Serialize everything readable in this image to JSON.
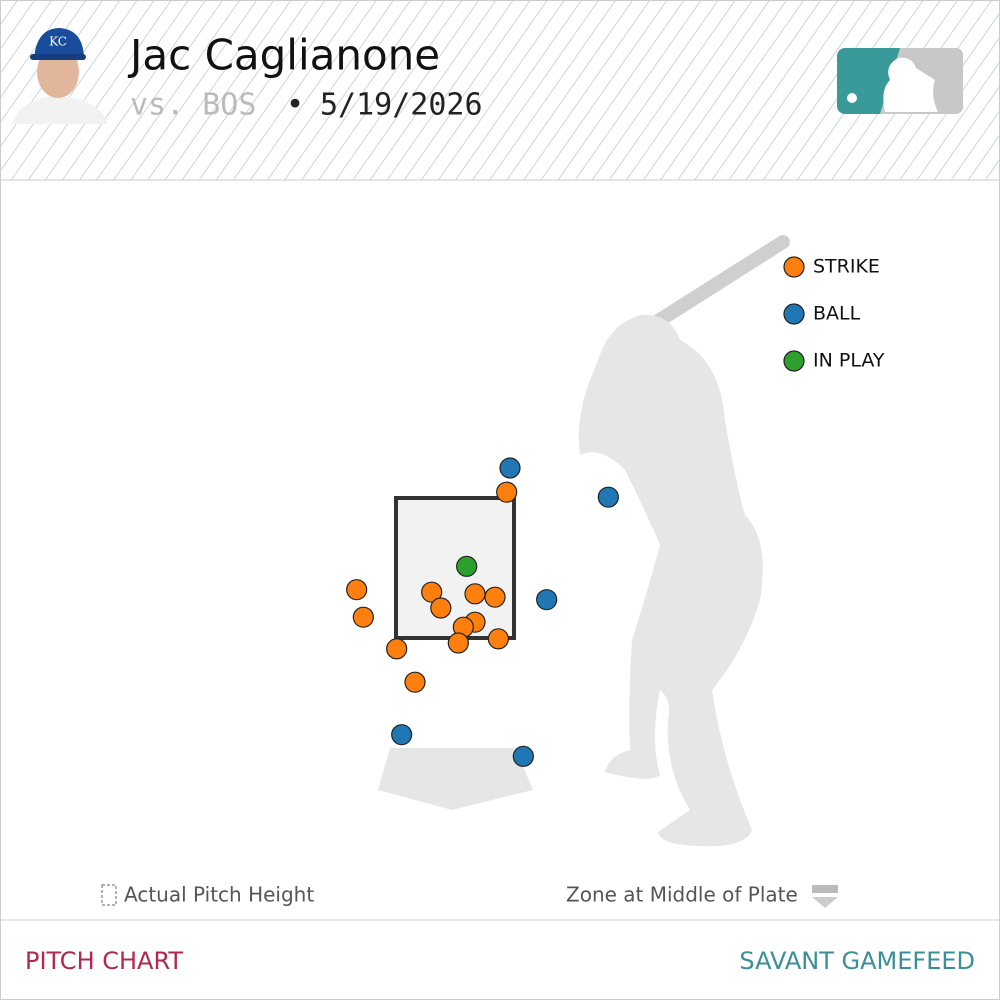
{
  "header": {
    "player": "Jac Caglianone",
    "opponent": "vs. BOS",
    "separator": "•",
    "date": "5/19/2026"
  },
  "chart_data": {
    "type": "scatter",
    "xlim": [
      -3,
      3
    ],
    "ylim": [
      -0.5,
      5.5
    ],
    "strike_zone": {
      "x": [
        -0.708,
        0.708
      ],
      "y": [
        1.6,
        3.28
      ]
    },
    "series": [
      {
        "name": "STRIKE",
        "color": "#ff7f0e",
        "x": [
          0.62,
          -1.18,
          -1.1,
          -0.28,
          -0.17,
          0.24,
          0.48,
          0.24,
          0.1,
          0.04,
          0.52,
          -0.7,
          -0.48
        ],
        "values": [
          3.35,
          2.18,
          1.85,
          2.15,
          1.96,
          2.13,
          2.09,
          1.79,
          1.73,
          1.54,
          1.59,
          1.47,
          1.07
        ]
      },
      {
        "name": "BALL",
        "color": "#1f77b4",
        "x": [
          0.66,
          1.84,
          1.1,
          -0.64,
          0.82
        ],
        "values": [
          3.64,
          3.29,
          2.06,
          0.44,
          0.18
        ]
      },
      {
        "name": "IN PLAY",
        "color": "#2ca02c",
        "x": [
          0.14
        ],
        "values": [
          2.46
        ]
      }
    ]
  },
  "notes": {
    "left": "Actual Pitch Height",
    "right": "Zone at Middle of Plate"
  },
  "footer": {
    "left_tab": "PITCH CHART",
    "right_tab": "SAVANT GAMEFEED"
  }
}
